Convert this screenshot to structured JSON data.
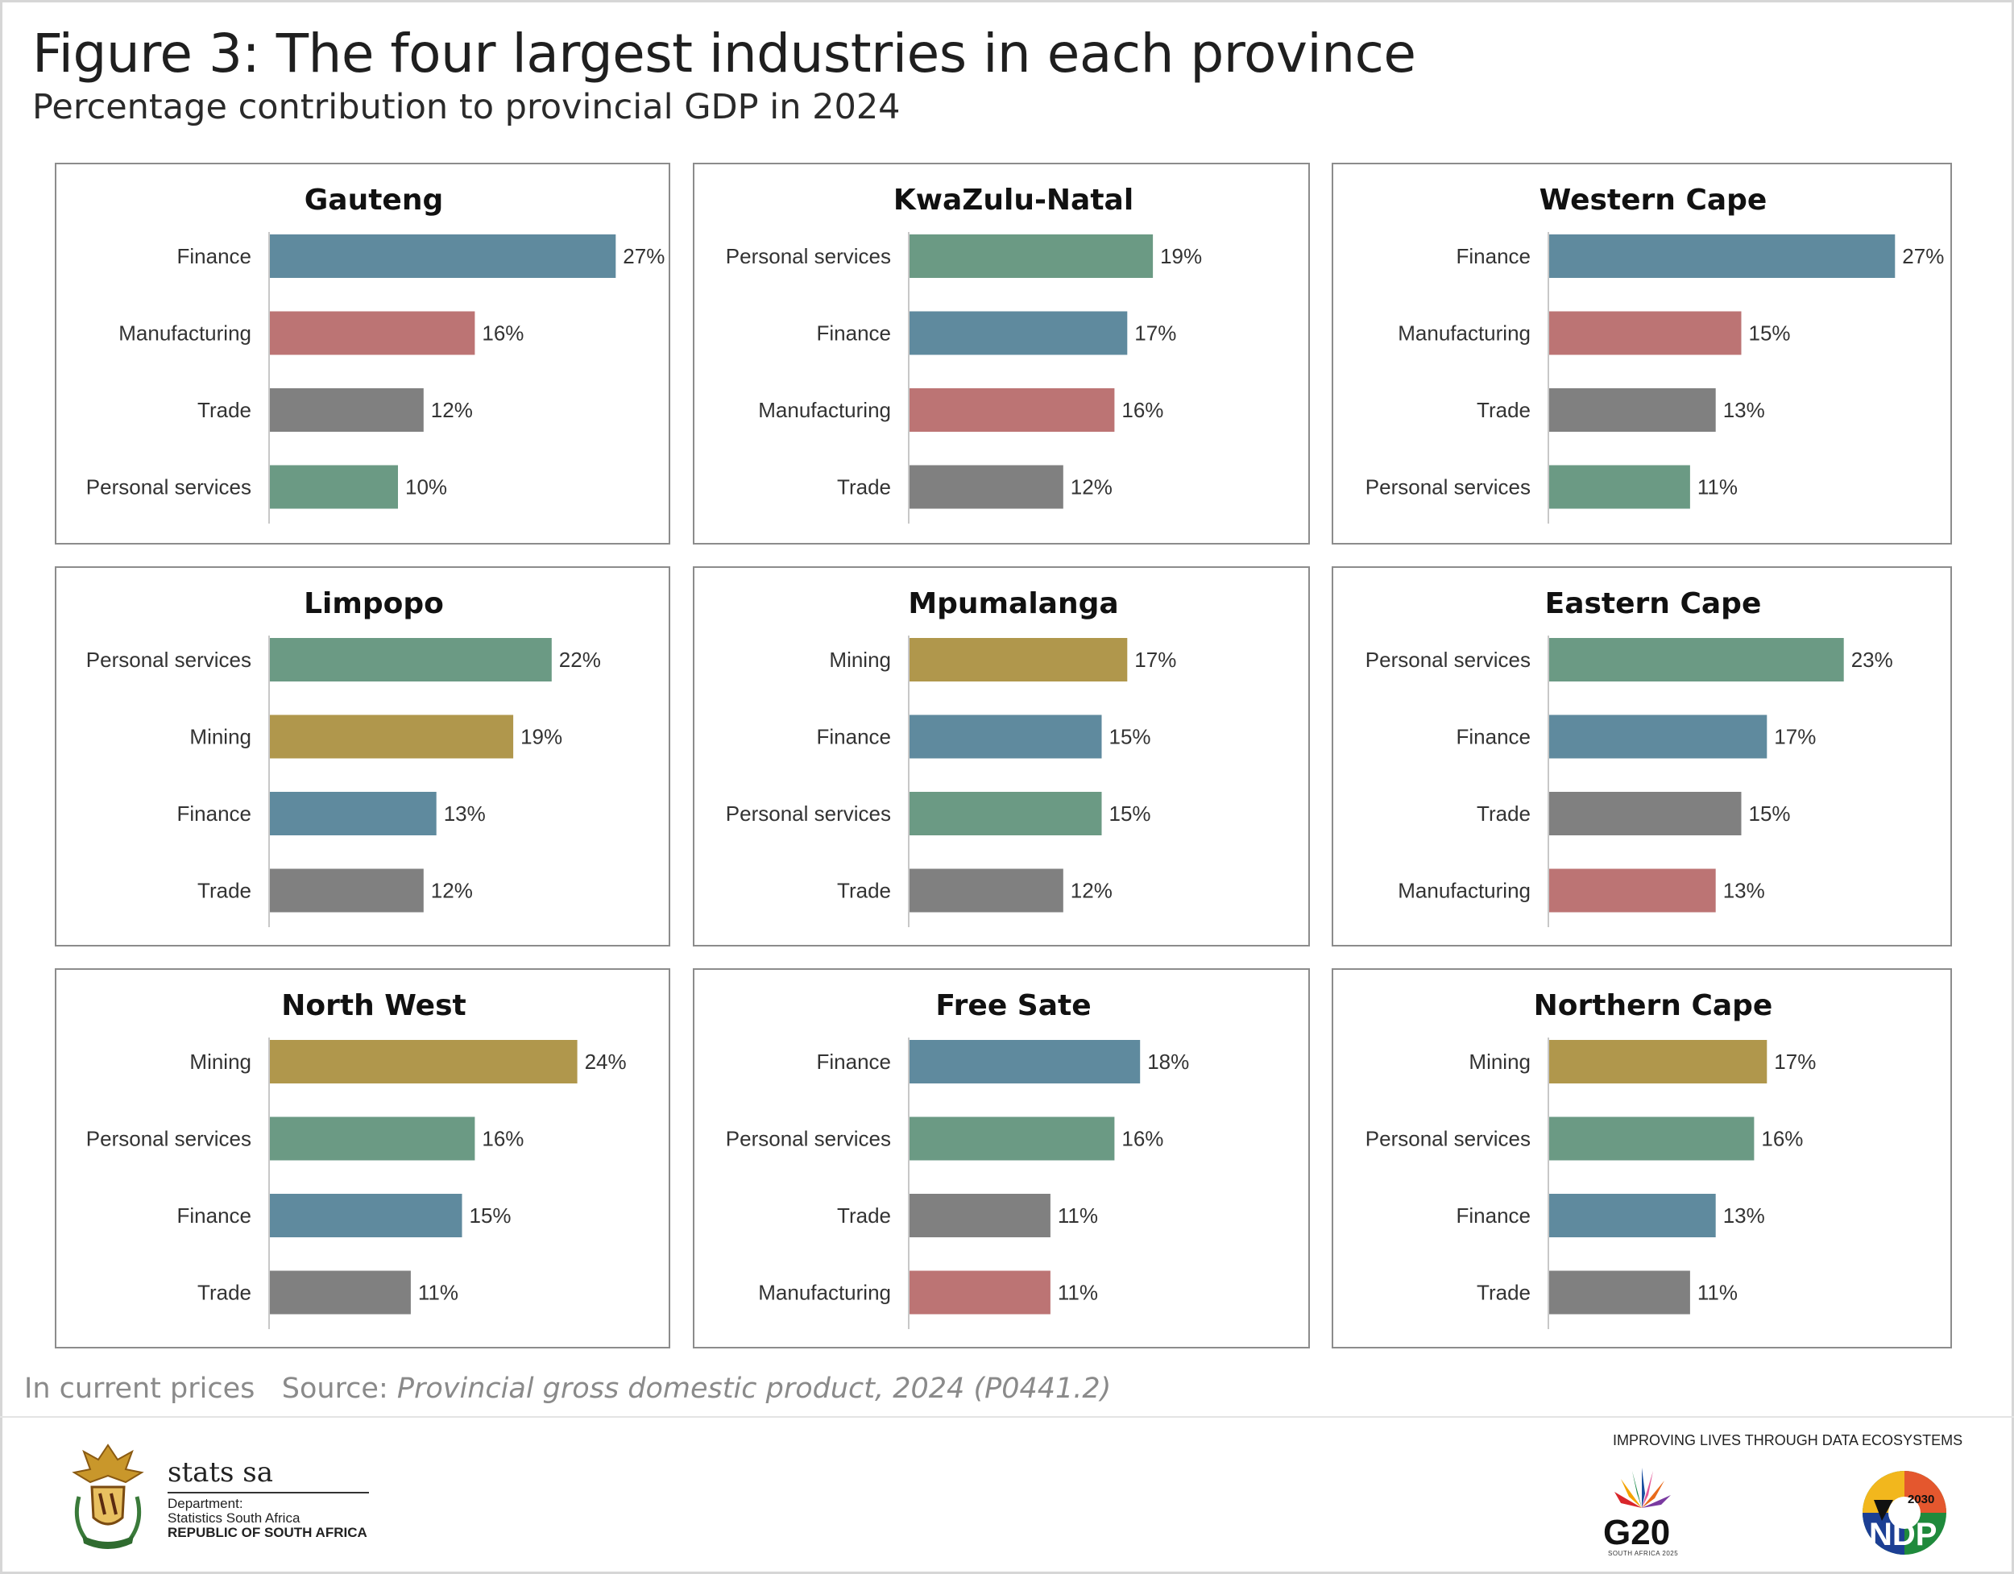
{
  "header": {
    "title": "Figure 3: The four largest industries in each province",
    "subtitle": "Percentage contribution to provincial GDP in 2024"
  },
  "colors": {
    "Finance": "#5f8a9e",
    "Manufacturing": "#bc7474",
    "Trade": "#808080",
    "Personal services": "#6b9a84",
    "Mining": "#b0974c"
  },
  "chart_data": [
    {
      "type": "bar",
      "orientation": "horizontal",
      "title": "Gauteng",
      "categories": [
        "Finance",
        "Manufacturing",
        "Trade",
        "Personal services"
      ],
      "values": [
        27,
        16,
        12,
        10
      ],
      "labels": [
        "27%",
        "16%",
        "12%",
        "10%"
      ]
    },
    {
      "type": "bar",
      "orientation": "horizontal",
      "title": "KwaZulu-Natal",
      "categories": [
        "Personal services",
        "Finance",
        "Manufacturing",
        "Trade"
      ],
      "values": [
        19,
        17,
        16,
        12
      ],
      "labels": [
        "19%",
        "17%",
        "16%",
        "12%"
      ]
    },
    {
      "type": "bar",
      "orientation": "horizontal",
      "title": "Western Cape",
      "categories": [
        "Finance",
        "Manufacturing",
        "Trade",
        "Personal services"
      ],
      "values": [
        27,
        15,
        13,
        11
      ],
      "labels": [
        "27%",
        "15%",
        "13%",
        "11%"
      ]
    },
    {
      "type": "bar",
      "orientation": "horizontal",
      "title": "Limpopo",
      "categories": [
        "Personal services",
        "Mining",
        "Finance",
        "Trade"
      ],
      "values": [
        22,
        19,
        13,
        12
      ],
      "labels": [
        "22%",
        "19%",
        "13%",
        "12%"
      ]
    },
    {
      "type": "bar",
      "orientation": "horizontal",
      "title": "Mpumalanga",
      "categories": [
        "Mining",
        "Finance",
        "Personal services",
        "Trade"
      ],
      "values": [
        17,
        15,
        15,
        12
      ],
      "labels": [
        "17%",
        "15%",
        "15%",
        "12%"
      ]
    },
    {
      "type": "bar",
      "orientation": "horizontal",
      "title": "Eastern Cape",
      "categories": [
        "Personal services",
        "Finance",
        "Trade",
        "Manufacturing"
      ],
      "values": [
        23,
        17,
        15,
        13
      ],
      "labels": [
        "23%",
        "17%",
        "15%",
        "13%"
      ]
    },
    {
      "type": "bar",
      "orientation": "horizontal",
      "title": "North West",
      "categories": [
        "Mining",
        "Personal services",
        "Finance",
        "Trade"
      ],
      "values": [
        24,
        16,
        15,
        11
      ],
      "labels": [
        "24%",
        "16%",
        "15%",
        "11%"
      ]
    },
    {
      "type": "bar",
      "orientation": "horizontal",
      "title": "Free Sate",
      "categories": [
        "Finance",
        "Personal services",
        "Trade",
        "Manufacturing"
      ],
      "values": [
        18,
        16,
        11,
        11
      ],
      "labels": [
        "18%",
        "16%",
        "11%",
        "11%"
      ]
    },
    {
      "type": "bar",
      "orientation": "horizontal",
      "title": "Northern Cape",
      "categories": [
        "Mining",
        "Personal services",
        "Finance",
        "Trade"
      ],
      "values": [
        17,
        16,
        13,
        11
      ],
      "labels": [
        "17%",
        "16%",
        "13%",
        "11%"
      ]
    }
  ],
  "footer": {
    "note": "In current prices",
    "source_prefix": "Source: ",
    "source_title": "Provincial gross domestic product, 2024 (P0441.2)",
    "org_name": "stats sa",
    "dept_line1": "Department:",
    "dept_line2": "Statistics South Africa",
    "dept_line3": "REPUBLIC OF SOUTH AFRICA",
    "tagline": "IMPROVING LIVES THROUGH DATA ECOSYSTEMS",
    "g20": "G20",
    "g20_sub": "SOUTH AFRICA 2025",
    "ndp": "NDP",
    "ndp_year": "2030"
  }
}
